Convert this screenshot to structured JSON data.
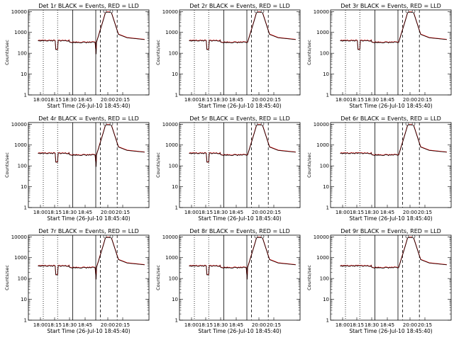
{
  "figure": {
    "ylabel": "Counts/sec",
    "xlabel": "Start Time (26-Jul-10 18:45:40)",
    "y_scale": "log",
    "ylim": [
      1,
      12000
    ],
    "y_ticks": [
      1,
      10,
      100,
      1000,
      10000
    ],
    "y_tick_labels": [
      "1",
      "10",
      "100",
      "1000",
      "10000"
    ],
    "x_range_hours_of_day": [
      "17:45",
      "20:33"
    ],
    "x_ticks": [
      "18:00",
      "18:15",
      "18:30",
      "18:45",
      "20:00",
      "20:15"
    ],
    "colors": {
      "events": "#000000",
      "lld": "#ff0000"
    }
  },
  "chart_data": [
    {
      "type": "line",
      "title": "Det 1r  BLACK = Events, RED = LLD",
      "dip": true,
      "spike_low": true
    },
    {
      "type": "line",
      "title": "Det 2r  BLACK = Events, RED = LLD",
      "dip": true,
      "spike_low": false
    },
    {
      "type": "line",
      "title": "Det 3r  BLACK = Events, RED = LLD",
      "dip": true,
      "spike_low": false
    },
    {
      "type": "line",
      "title": "Det 4r  BLACK = Events, RED = LLD",
      "dip": true,
      "spike_low": true
    },
    {
      "type": "line",
      "title": "Det 5r  BLACK = Events, RED = LLD",
      "dip": true,
      "spike_low": false
    },
    {
      "type": "line",
      "title": "Det 6r  BLACK = Events, RED = LLD",
      "dip": false,
      "spike_low": false
    },
    {
      "type": "line",
      "title": "Det 7r  BLACK = Events, RED = LLD",
      "dip": true,
      "spike_low": true
    },
    {
      "type": "line",
      "title": "Det 8r  BLACK = Events, RED = LLD",
      "dip": true,
      "spike_low": true
    },
    {
      "type": "line",
      "title": "Det 9r  BLACK = Events, RED = LLD",
      "dip": false,
      "spike_low": false
    }
  ],
  "series_shape": {
    "baseline_level": 400,
    "mid_level": 330,
    "dip_level": 150,
    "peak_level": 9000,
    "tail_level": 450
  }
}
